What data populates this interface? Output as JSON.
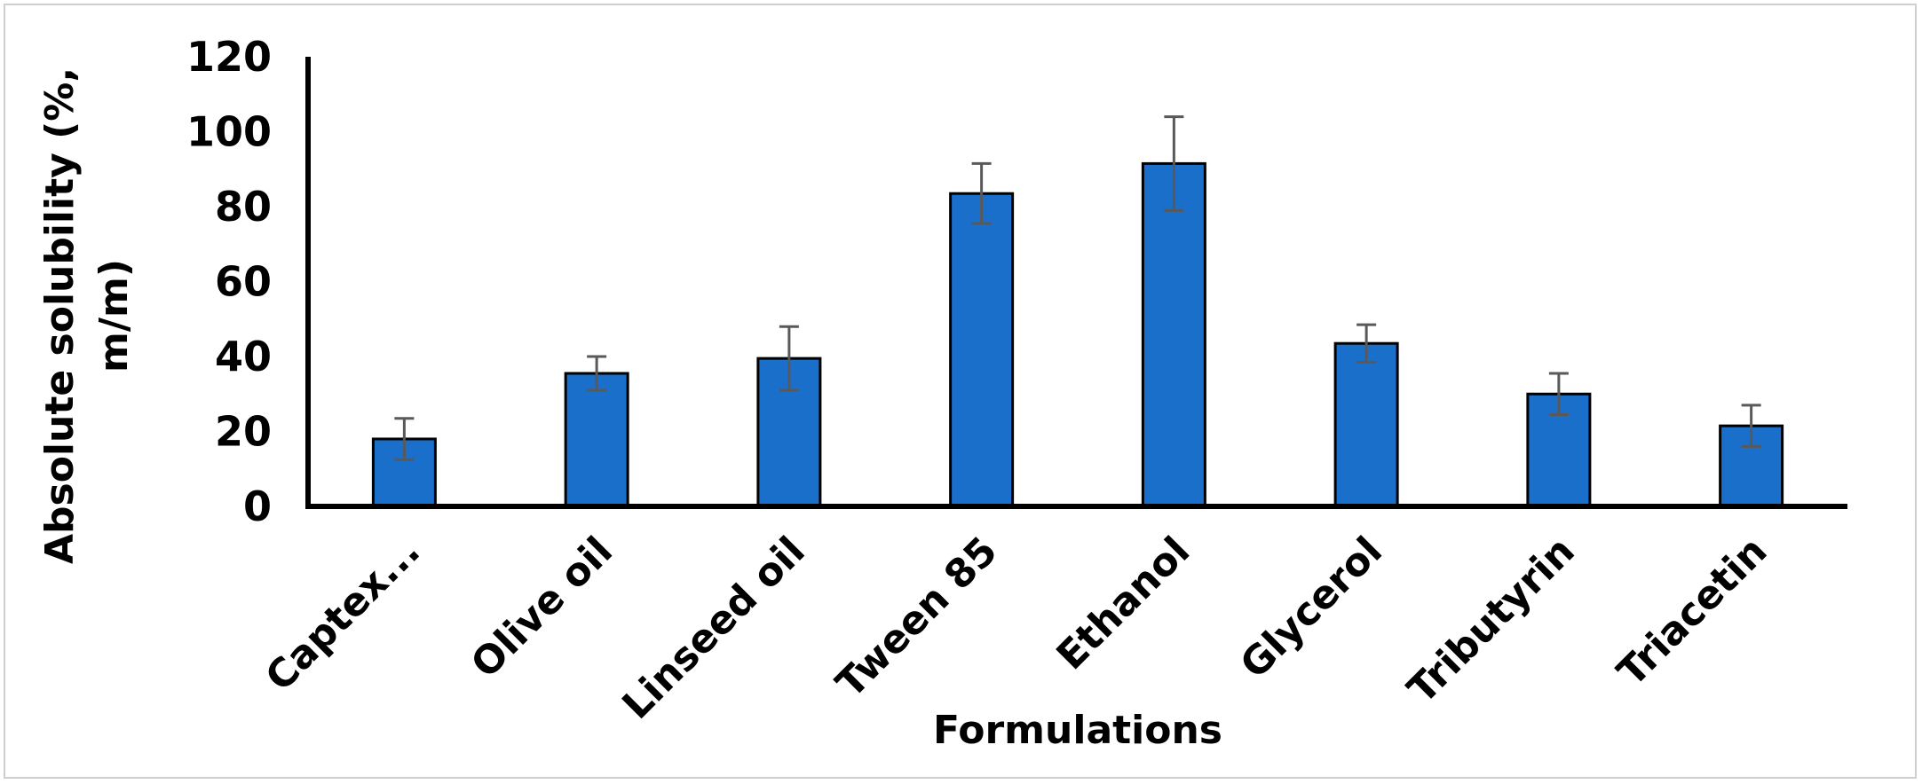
{
  "chart_data": {
    "type": "bar",
    "title": "",
    "xlabel": "Formulations",
    "ylabel_lines": [
      "Absolute solubility (%,",
      "m/m)"
    ],
    "categories": [
      "Captex...",
      "Olive oil",
      "Linseed oil",
      "Tween 85",
      "Ethanol",
      "Glycerol",
      "Tributyrin",
      "Triacetin"
    ],
    "values": [
      18,
      35.5,
      39.5,
      83.5,
      91.5,
      43.5,
      30,
      21.5
    ],
    "errors": [
      5.5,
      4.5,
      8.5,
      8,
      12.5,
      5,
      5.5,
      5.5
    ],
    "ylim": [
      0,
      120
    ],
    "yticks": [
      "0",
      "20",
      "40",
      "60",
      "80",
      "100",
      "120"
    ],
    "grid": false,
    "legend": "none",
    "colors": {
      "bar": "#1a6fcb",
      "bar_edge": "#000000",
      "error_bar": "#595959",
      "axis": "#000000"
    }
  }
}
